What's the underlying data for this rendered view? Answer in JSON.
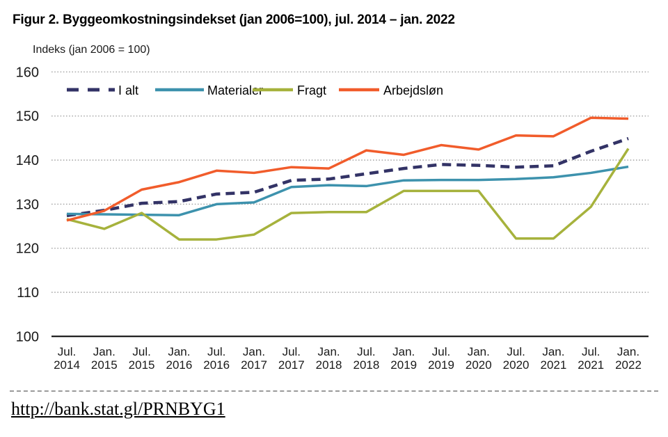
{
  "page": {
    "title": "Figur 2. Byggeomkostningsindekset (jan 2006=100), jul. 2014 – jan. 2022",
    "source_link": "http://bank.stat.gl/PRNBYG1"
  },
  "colors": {
    "grid": "#9c9c9c",
    "axis": "#000000",
    "tick_text": "#1a1a1a"
  },
  "chart_data": {
    "type": "line",
    "title": "Figur 2. Byggeomkostningsindekset (jan 2006=100), jul. 2014 – jan. 2022",
    "y_axis_label": "Indeks (jan 2006 = 100)",
    "xlabel": "",
    "ylabel": "Indeks (jan 2006 = 100)",
    "ylim": [
      100,
      160
    ],
    "y_ticks": [
      100,
      110,
      120,
      130,
      140,
      150,
      160
    ],
    "grid": "horizontal-dotted",
    "legend_position": "top-inside",
    "categories": [
      "Jul. 2014",
      "Jan. 2015",
      "Jul. 2015",
      "Jan. 2016",
      "Jul. 2016",
      "Jan. 2017",
      "Jul. 2017",
      "Jan. 2018",
      "Jul. 2018",
      "Jan. 2019",
      "Jul. 2019",
      "Jan. 2020",
      "Jul. 2020",
      "Jan. 2021",
      "Jul. 2021",
      "Jan. 2022"
    ],
    "series": [
      {
        "name": "I alt",
        "color": "#333366",
        "style": "dashed",
        "values": [
          127.4,
          128.6,
          130.2,
          130.6,
          132.3,
          132.7,
          135.4,
          135.7,
          136.9,
          138.1,
          139.0,
          138.8,
          138.4,
          138.7,
          142.0,
          144.9
        ]
      },
      {
        "name": "Materialer",
        "color": "#3d92ad",
        "style": "solid",
        "values": [
          127.8,
          127.7,
          127.6,
          127.5,
          130.0,
          130.4,
          133.9,
          134.3,
          134.1,
          135.4,
          135.5,
          135.5,
          135.7,
          136.1,
          137.1,
          138.5
        ]
      },
      {
        "name": "Fragt",
        "color": "#a6b23c",
        "style": "solid",
        "values": [
          126.6,
          124.4,
          128.0,
          122.0,
          122.0,
          123.1,
          128.0,
          128.2,
          128.2,
          133.0,
          133.0,
          133.0,
          122.2,
          122.2,
          129.4,
          142.6
        ]
      },
      {
        "name": "Arbejdsløn",
        "color": "#f15c2b",
        "style": "solid",
        "values": [
          126.3,
          128.5,
          133.3,
          135.0,
          137.6,
          137.1,
          138.4,
          138.1,
          142.2,
          141.2,
          143.4,
          142.4,
          145.6,
          145.4,
          149.6,
          149.4
        ]
      }
    ]
  }
}
